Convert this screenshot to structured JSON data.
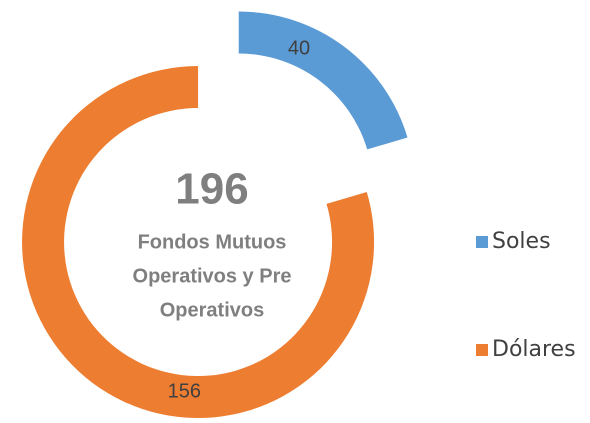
{
  "chart_data": {
    "type": "donut",
    "categories": [
      "Soles",
      "Dólares"
    ],
    "values": [
      40,
      156
    ],
    "colors": [
      "#5b9bd5",
      "#ed7d31"
    ],
    "total": 196,
    "center_text": [
      "Fondos Mutuos",
      "Operativos y Pre",
      "Operativos"
    ],
    "legend": "right"
  }
}
